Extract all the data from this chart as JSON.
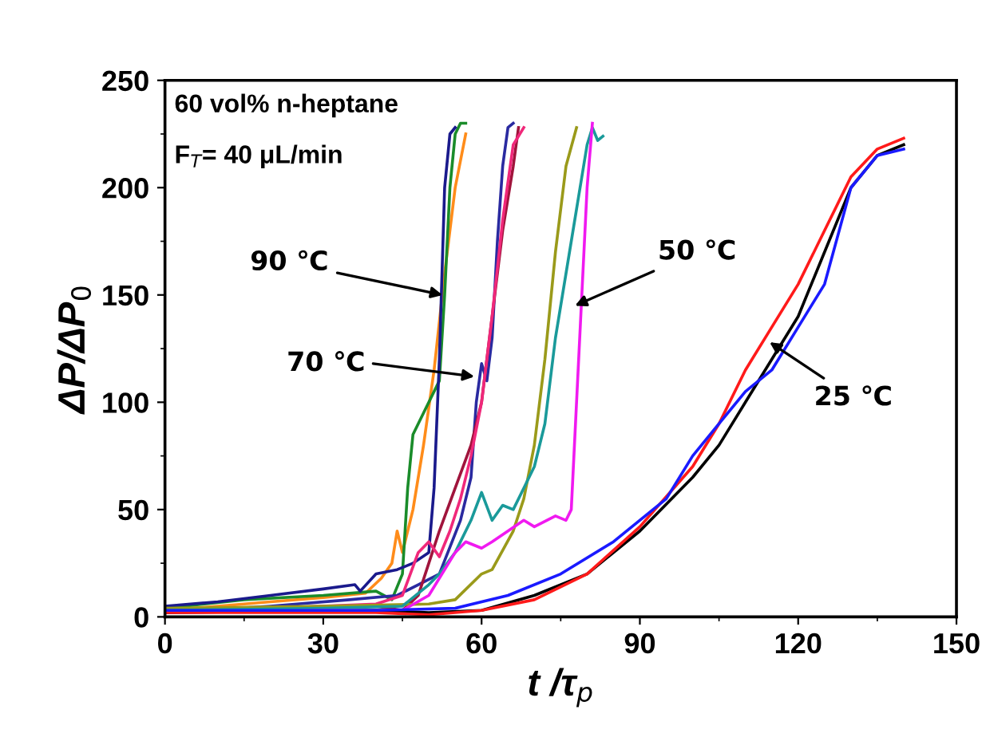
{
  "chart_data": {
    "type": "line",
    "xlabel": "t /τ$_{p}$",
    "ylabel": "ΔP/ΔP$_{0}$",
    "xlim": [
      0,
      150
    ],
    "xticks": [
      0,
      30,
      60,
      90,
      120,
      150
    ],
    "ylim": [
      0,
      250
    ],
    "yticks": [
      0,
      50,
      100,
      150,
      200,
      250
    ],
    "grid": false,
    "legend": false,
    "marker": "none",
    "line_style": "solid",
    "annotations": [
      "60 vol% n-heptane",
      "F$_{T}$= 40 μL/min",
      {
        "text": "90 ℃",
        "x": 52.6,
        "y": 150
      },
      "70 ℃",
      {
        "text": "50 ℃",
        "x": 77.7,
        "y": 145
      },
      {
        "text": "25 ℃",
        "x": 114.6,
        "y": 128
      }
    ],
    "series": [
      {
        "color": "#ff8c1a",
        "x": [
          0,
          10,
          20,
          30,
          38,
          41,
          43,
          44,
          45,
          47,
          49,
          51,
          53,
          55,
          57
        ],
        "values": [
          3,
          5,
          7,
          9,
          11,
          18,
          25,
          40,
          30,
          50,
          80,
          115,
          160,
          200,
          225
        ]
      },
      {
        "color": "#1a8c2a",
        "x": [
          0,
          15,
          30,
          40,
          43,
          45,
          46,
          47,
          49,
          50,
          52,
          53,
          54,
          55,
          56,
          57
        ],
        "values": [
          4,
          8,
          10,
          12,
          8,
          20,
          60,
          85,
          95,
          100,
          110,
          150,
          200,
          225,
          230,
          230
        ]
      },
      {
        "color": "#1a1a8c",
        "x": [
          0,
          10,
          20,
          30,
          36,
          37,
          40,
          44,
          47,
          50,
          51,
          52,
          53,
          54,
          55
        ],
        "values": [
          5,
          7,
          10,
          13,
          15,
          12,
          20,
          22,
          25,
          30,
          60,
          120,
          200,
          225,
          228
        ]
      },
      {
        "color": "#2a2aa0",
        "x": [
          0,
          20,
          35,
          44,
          48,
          52,
          56,
          58,
          59,
          60,
          61,
          62,
          63,
          64,
          65,
          66
        ],
        "values": [
          2,
          5,
          8,
          10,
          15,
          20,
          45,
          65,
          100,
          118,
          110,
          130,
          175,
          210,
          228,
          230
        ]
      },
      {
        "color": "#a0143c",
        "x": [
          0,
          20,
          40,
          45,
          48,
          50,
          52,
          55,
          58,
          60,
          62,
          64,
          66,
          67
        ],
        "values": [
          3,
          4,
          5,
          3,
          10,
          25,
          40,
          60,
          80,
          100,
          140,
          180,
          210,
          228
        ]
      },
      {
        "color": "#f0287a",
        "x": [
          0,
          20,
          40,
          45,
          48,
          50,
          52,
          54,
          56,
          58,
          60,
          62,
          64,
          66,
          68
        ],
        "values": [
          2,
          4,
          6,
          10,
          30,
          35,
          28,
          40,
          55,
          75,
          100,
          140,
          185,
          220,
          228
        ]
      },
      {
        "color": "#9a9a1a",
        "x": [
          0,
          30,
          50,
          55,
          60,
          62,
          66,
          68,
          70,
          72,
          74,
          76,
          78
        ],
        "values": [
          4,
          5,
          6,
          8,
          20,
          22,
          40,
          55,
          80,
          120,
          170,
          210,
          228
        ]
      },
      {
        "color": "#1a9a9a",
        "x": [
          0,
          30,
          45,
          50,
          52,
          55,
          58,
          60,
          62,
          64,
          66,
          68,
          70,
          72,
          74,
          76,
          78,
          80,
          81,
          82,
          83
        ],
        "values": [
          3,
          4,
          5,
          15,
          20,
          30,
          45,
          58,
          45,
          52,
          50,
          60,
          70,
          90,
          130,
          160,
          190,
          220,
          228,
          222,
          224
        ]
      },
      {
        "color": "#f01af0",
        "x": [
          0,
          30,
          45,
          50,
          55,
          57,
          60,
          62,
          65,
          68,
          70,
          74,
          76,
          77,
          78,
          79,
          80,
          81
        ],
        "values": [
          2,
          3,
          3,
          10,
          30,
          35,
          32,
          35,
          40,
          45,
          42,
          47,
          45,
          50,
          100,
          150,
          200,
          230
        ]
      },
      {
        "color": "#000000",
        "x": [
          0,
          40,
          50,
          60,
          70,
          80,
          90,
          100,
          105,
          110,
          115,
          120,
          125,
          130,
          135,
          140
        ],
        "values": [
          2,
          3,
          2,
          3,
          10,
          20,
          40,
          65,
          80,
          100,
          120,
          140,
          170,
          200,
          215,
          220
        ]
      },
      {
        "color": "#ff1a1a",
        "x": [
          0,
          40,
          50,
          60,
          70,
          80,
          90,
          100,
          105,
          110,
          115,
          120,
          125,
          130,
          135,
          140
        ],
        "values": [
          2,
          2,
          1,
          3,
          8,
          20,
          42,
          70,
          90,
          115,
          135,
          155,
          180,
          205,
          218,
          223
        ]
      },
      {
        "color": "#1a1aff",
        "x": [
          0,
          40,
          55,
          65,
          75,
          85,
          95,
          100,
          105,
          110,
          115,
          120,
          125,
          130,
          135,
          140
        ],
        "values": [
          3,
          3,
          4,
          10,
          20,
          35,
          55,
          75,
          90,
          105,
          115,
          135,
          155,
          200,
          215,
          218
        ]
      }
    ]
  }
}
